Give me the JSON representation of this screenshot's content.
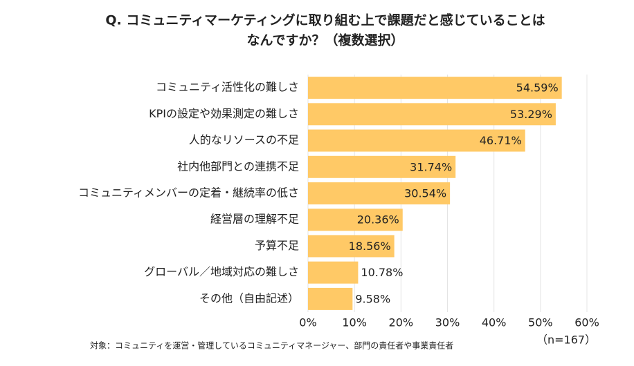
{
  "chart_data": {
    "type": "bar",
    "title": [
      "Q. コミュニティマーケティングに取り組む上で課題だと感じていることは",
      "なんですか？（複数選択）"
    ],
    "categories": [
      "コミュニティ活性化の難しさ",
      "KPIの設定や効果測定の難しさ",
      "人的なリソースの不足",
      "社内他部門との連携不足",
      "コミュニティメンバーの定着・継続率の低さ",
      "経営層の理解不足",
      "予算不足",
      "グローバル／地域対応の難しさ",
      "その他（自由記述）"
    ],
    "values": [
      54.59,
      53.29,
      46.71,
      31.74,
      30.54,
      20.36,
      18.56,
      10.78,
      9.58
    ],
    "value_labels": [
      "54.59%",
      "53.29%",
      "46.71%",
      "31.74%",
      "30.54%",
      "20.36%",
      "18.56%",
      "10.78%",
      "9.58%"
    ],
    "color": "#ffc966",
    "xlim": [
      0,
      60
    ],
    "xticks": [
      {
        "value": 0,
        "label": "0%"
      },
      {
        "value": 10,
        "label": "10%"
      },
      {
        "value": 20,
        "label": "20%"
      },
      {
        "value": 30,
        "label": "30%"
      },
      {
        "value": 40,
        "label": "40%"
      },
      {
        "value": 50,
        "label": "50%"
      },
      {
        "value": 60,
        "label": "60%"
      }
    ],
    "grid": true,
    "footnote": "対象：コミュニティを運営・管理しているコミュニティマネージャー、部門の責任者や事業責任者",
    "sample_note": "（n=167）"
  }
}
